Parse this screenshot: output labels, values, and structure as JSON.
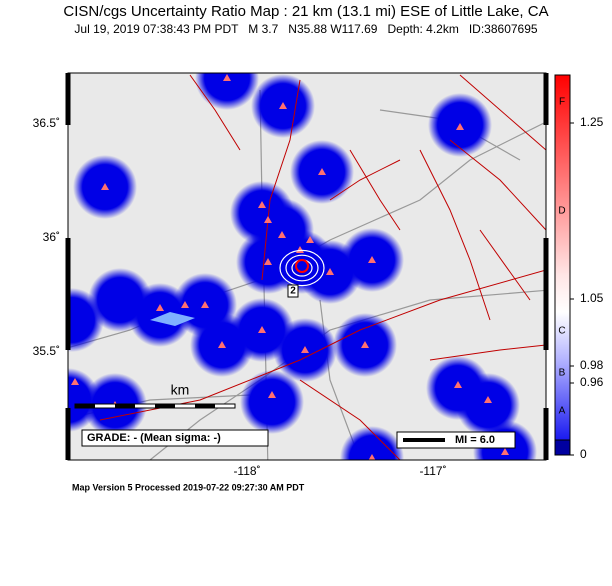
{
  "header": {
    "title": "CISN/cgs Uncertainty Ratio Map : 21 km (13.1 mi) ESE of Little Lake, CA",
    "subtitle": "Jul 19, 2019 07:38:43 PM PDT   M 3.7   N35.88 W117.69   Depth: 4.2km   ID:38607695"
  },
  "map": {
    "lat_labels": [
      "36.5˚",
      "36˚",
      "35.5˚"
    ],
    "lon_labels": [
      "-118˚",
      "-117˚"
    ],
    "scale_label": "km",
    "grade": "GRADE: - (Mean sigma: -)",
    "mi_legend": "MI = 6.0",
    "contour_label": "2"
  },
  "colorbar": {
    "letters": [
      "F",
      "D",
      "C",
      "B",
      "A"
    ],
    "ticks": [
      "1.25",
      "1.05",
      "0.98",
      "0.96",
      "0"
    ]
  },
  "footer": "Map Version 5 Processed 2019-07-22 09:27:30 AM PDT"
}
